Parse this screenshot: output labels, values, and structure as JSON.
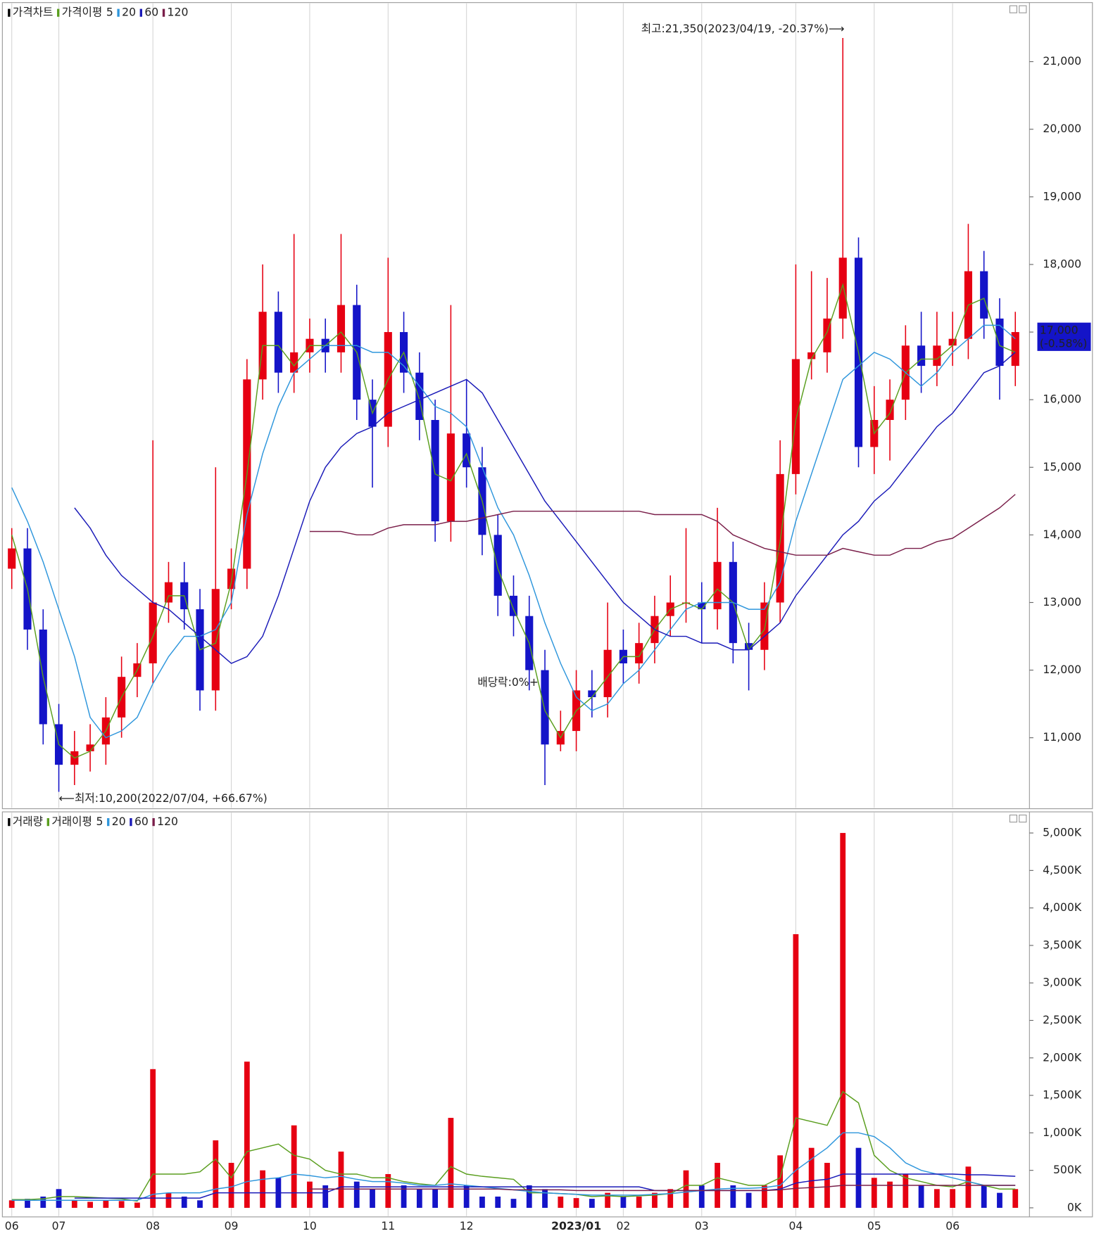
{
  "chart_data": [
    {
      "type": "candlestick",
      "name": "가격차트",
      "ma_label": "가격이평",
      "categories": [
        "06",
        null,
        null,
        "07",
        null,
        null,
        null,
        null,
        null,
        "08",
        null,
        null,
        null,
        null,
        "09",
        null,
        null,
        null,
        null,
        "10",
        null,
        null,
        null,
        null,
        "11",
        null,
        null,
        null,
        null,
        "12",
        null,
        null,
        null,
        null,
        null,
        null,
        "2023/01",
        null,
        null,
        "02",
        null,
        null,
        null,
        null,
        "03",
        null,
        null,
        null,
        null,
        null,
        "04",
        null,
        null,
        null,
        null,
        "05",
        null,
        null,
        null,
        null,
        "06",
        null,
        null,
        null,
        null
      ],
      "open": [
        13500,
        13800,
        12600,
        11200,
        10600,
        10800,
        10900,
        11300,
        11900,
        12100,
        13000,
        13300,
        12900,
        11700,
        13200,
        13500,
        16300,
        17300,
        16400,
        16700,
        16900,
        16700,
        17400,
        16000,
        15600,
        17000,
        16400,
        15700,
        14200,
        15500,
        15000,
        14000,
        13100,
        12800,
        12000,
        10900,
        11100,
        11700,
        11600,
        12300,
        12100,
        12400,
        12800,
        13000,
        13000,
        12900,
        13600,
        12400,
        12300,
        13000,
        14900,
        16600,
        16700,
        17200,
        18100,
        15300,
        15700,
        16000,
        16800,
        16500,
        16800,
        16900,
        17900,
        17200,
        16500
      ],
      "high": [
        14100,
        14100,
        12900,
        11500,
        11100,
        11200,
        11600,
        12200,
        12400,
        15400,
        13600,
        13600,
        13200,
        15000,
        13800,
        16600,
        18000,
        17600,
        18450,
        17200,
        17200,
        18450,
        17700,
        16300,
        18100,
        17300,
        16700,
        16000,
        17400,
        16300,
        15300,
        14300,
        13400,
        13100,
        12300,
        11400,
        12000,
        12000,
        13000,
        12600,
        12700,
        13100,
        13400,
        14100,
        13300,
        14400,
        13900,
        12700,
        13300,
        15400,
        18000,
        17900,
        17800,
        21350,
        18400,
        16200,
        16300,
        17100,
        17300,
        17300,
        17300,
        18600,
        18200,
        17500,
        17300
      ],
      "low": [
        13200,
        12300,
        10900,
        10200,
        10300,
        10500,
        10600,
        11000,
        11600,
        11800,
        12700,
        12600,
        11400,
        11400,
        12900,
        13200,
        16000,
        16100,
        16100,
        16400,
        16400,
        16400,
        15700,
        14700,
        15300,
        16100,
        15400,
        13900,
        13900,
        14700,
        13700,
        12800,
        12500,
        11700,
        10300,
        10800,
        10800,
        11300,
        11300,
        11800,
        11800,
        12100,
        12500,
        12700,
        12400,
        12600,
        12100,
        11700,
        12000,
        12700,
        14600,
        16300,
        16400,
        16900,
        15000,
        14900,
        15100,
        15700,
        16100,
        16200,
        16500,
        16600,
        16900,
        16000,
        16200
      ],
      "close": [
        13800,
        12600,
        11200,
        10600,
        10800,
        10900,
        11300,
        11900,
        12100,
        13000,
        13300,
        12900,
        11700,
        13200,
        13500,
        16300,
        17300,
        16400,
        16700,
        16900,
        16700,
        17400,
        16000,
        15600,
        17000,
        16400,
        15700,
        14200,
        15500,
        15000,
        14000,
        13100,
        12800,
        12000,
        10900,
        11100,
        11700,
        11600,
        12300,
        12100,
        12400,
        12800,
        13000,
        13000,
        12900,
        13600,
        12400,
        12300,
        13000,
        14900,
        16600,
        16700,
        17200,
        18100,
        15300,
        15700,
        16000,
        16800,
        16500,
        16800,
        16900,
        17900,
        17200,
        16500,
        17000
      ],
      "up_color": "#e60012",
      "down_color": "#1414c8",
      "series": [
        {
          "name": "5",
          "color": "#5a9e1e",
          "values": [
            14000,
            13200,
            11900,
            10900,
            10700,
            10800,
            11100,
            11600,
            12000,
            12500,
            13100,
            13100,
            12300,
            12400,
            13300,
            14900,
            16800,
            16800,
            16500,
            16800,
            16800,
            17000,
            16700,
            15800,
            16300,
            16700,
            16000,
            14900,
            14800,
            15200,
            14500,
            13500,
            12900,
            12400,
            11400,
            11000,
            11400,
            11600,
            11900,
            12200,
            12200,
            12600,
            12900,
            13000,
            12900,
            13200,
            13000,
            12300,
            12600,
            13900,
            15700,
            16600,
            17000,
            17700,
            16700,
            15500,
            15800,
            16400,
            16600,
            16600,
            16800,
            17400,
            17500,
            16800,
            16700
          ]
        },
        {
          "name": "20",
          "color": "#2e96dc",
          "values": [
            14700,
            14200,
            13600,
            12900,
            12200,
            11300,
            11000,
            11100,
            11300,
            11800,
            12200,
            12500,
            12500,
            12600,
            13000,
            14300,
            15200,
            15900,
            16400,
            16600,
            16800,
            16800,
            16800,
            16700,
            16700,
            16500,
            16200,
            15900,
            15800,
            15600,
            15000,
            14400,
            14000,
            13400,
            12700,
            12100,
            11600,
            11400,
            11500,
            11800,
            12000,
            12300,
            12600,
            12900,
            13000,
            13000,
            13000,
            12900,
            12900,
            13300,
            14200,
            14900,
            15600,
            16300,
            16500,
            16700,
            16600,
            16400,
            16200,
            16400,
            16700,
            16900,
            17100,
            17100,
            16900
          ]
        },
        {
          "name": "60",
          "color": "#1a1ab8",
          "values": [
            null,
            null,
            null,
            null,
            14400,
            14100,
            13700,
            13400,
            13200,
            13000,
            12900,
            12700,
            12500,
            12300,
            12100,
            12200,
            12500,
            13100,
            13800,
            14500,
            15000,
            15300,
            15500,
            15600,
            15800,
            15900,
            16000,
            16100,
            16200,
            16300,
            16100,
            15700,
            15300,
            14900,
            14500,
            14200,
            13900,
            13600,
            13300,
            13000,
            12800,
            12600,
            12500,
            12500,
            12400,
            12400,
            12300,
            12300,
            12500,
            12700,
            13100,
            13400,
            13700,
            14000,
            14200,
            14500,
            14700,
            15000,
            15300,
            15600,
            15800,
            16100,
            16400,
            16500,
            16700
          ]
        },
        {
          "name": "120",
          "color": "#7a1f4a",
          "values": [
            null,
            null,
            null,
            null,
            null,
            null,
            null,
            null,
            null,
            null,
            null,
            null,
            null,
            null,
            null,
            null,
            null,
            null,
            null,
            14050,
            14050,
            14050,
            14000,
            14000,
            14100,
            14150,
            14150,
            14150,
            14200,
            14200,
            14250,
            14300,
            14350,
            14350,
            14350,
            14350,
            14350,
            14350,
            14350,
            14350,
            14350,
            14300,
            14300,
            14300,
            14300,
            14200,
            14000,
            13900,
            13800,
            13750,
            13700,
            13700,
            13700,
            13800,
            13750,
            13700,
            13700,
            13800,
            13800,
            13900,
            13950,
            14100,
            14250,
            14400,
            14600
          ]
        }
      ],
      "ylim": [
        9950,
        21850
      ],
      "yticks": [
        {
          "value": 11000,
          "label": "11,000"
        },
        {
          "value": 12000,
          "label": "12,000"
        },
        {
          "value": 13000,
          "label": "13,000"
        },
        {
          "value": 14000,
          "label": "14,000"
        },
        {
          "value": 15000,
          "label": "15,000"
        },
        {
          "value": 16000,
          "label": "16,000"
        },
        {
          "value": 17000,
          "label": "17,000"
        },
        {
          "value": 18000,
          "label": "18,000"
        },
        {
          "value": 19000,
          "label": "19,000"
        },
        {
          "value": 20000,
          "label": "20,000"
        },
        {
          "value": 21000,
          "label": "21,000"
        }
      ],
      "last_price": {
        "value": 17000,
        "label": "17,000",
        "change": "(-0.58%)"
      },
      "annotations": {
        "max": "최고:21,350(2023/04/19, -20.37%)⟶",
        "min": "⟵최저:10,200(2022/07/04, +66.67%)",
        "dividend": "배당락:0%"
      }
    },
    {
      "type": "bar",
      "name": "거래량",
      "ma_label": "거래이평",
      "values": [
        100,
        120,
        150,
        250,
        100,
        80,
        100,
        90,
        70,
        1850,
        200,
        150,
        100,
        900,
        600,
        1950,
        500,
        400,
        1100,
        350,
        300,
        750,
        350,
        250,
        450,
        300,
        250,
        250,
        1200,
        300,
        150,
        150,
        120,
        300,
        250,
        150,
        130,
        120,
        200,
        150,
        150,
        200,
        250,
        500,
        300,
        600,
        300,
        200,
        300,
        700,
        3650,
        800,
        600,
        5000,
        800,
        400,
        350,
        450,
        300,
        250,
        250,
        550,
        300,
        200,
        250
      ],
      "series": [
        {
          "name": "5",
          "color": "#5a9e1e",
          "values": [
            110,
            110,
            120,
            150,
            150,
            140,
            130,
            120,
            90,
            450,
            450,
            450,
            480,
            650,
            400,
            750,
            800,
            850,
            700,
            650,
            500,
            450,
            450,
            400,
            400,
            350,
            320,
            300,
            550,
            450,
            420,
            400,
            380,
            200,
            200,
            190,
            180,
            150,
            160,
            150,
            160,
            170,
            190,
            300,
            300,
            400,
            350,
            300,
            300,
            400,
            1200,
            1150,
            1100,
            1550,
            1400,
            700,
            500,
            400,
            350,
            300,
            280,
            350,
            300,
            250,
            250
          ]
        },
        {
          "name": "20",
          "color": "#2e96dc",
          "values": [
            100,
            100,
            100,
            100,
            100,
            100,
            100,
            100,
            100,
            180,
            200,
            200,
            200,
            250,
            280,
            350,
            380,
            400,
            450,
            430,
            400,
            420,
            380,
            350,
            350,
            330,
            300,
            300,
            320,
            300,
            280,
            260,
            240,
            220,
            200,
            190,
            180,
            170,
            170,
            170,
            170,
            180,
            190,
            210,
            230,
            250,
            260,
            260,
            270,
            300,
            500,
            650,
            800,
            1000,
            1000,
            950,
            800,
            600,
            500,
            450,
            400,
            350,
            300,
            300,
            300
          ]
        },
        {
          "name": "60",
          "color": "#1a1ab8",
          "values": [
            null,
            null,
            null,
            null,
            130,
            130,
            130,
            130,
            130,
            130,
            130,
            130,
            130,
            200,
            200,
            200,
            200,
            200,
            200,
            200,
            200,
            280,
            280,
            280,
            280,
            280,
            280,
            280,
            280,
            280,
            280,
            280,
            280,
            280,
            280,
            280,
            280,
            280,
            280,
            280,
            280,
            230,
            230,
            230,
            230,
            230,
            230,
            230,
            230,
            250,
            330,
            360,
            380,
            450,
            450,
            450,
            450,
            450,
            450,
            450,
            450,
            440,
            440,
            430,
            420
          ]
        },
        {
          "name": "120",
          "color": "#7a1f4a",
          "values": [
            null,
            null,
            null,
            null,
            null,
            null,
            null,
            null,
            null,
            null,
            null,
            null,
            null,
            null,
            null,
            null,
            null,
            null,
            null,
            250,
            250,
            250,
            250,
            250,
            250,
            250,
            250,
            250,
            250,
            250,
            250,
            250,
            240,
            240,
            240,
            240,
            230,
            230,
            230,
            230,
            230,
            230,
            230,
            230,
            230,
            230,
            230,
            230,
            230,
            240,
            260,
            270,
            280,
            300,
            300,
            300,
            300,
            300,
            300,
            300,
            300,
            300,
            300,
            300,
            300
          ]
        }
      ],
      "ylim": [
        -100,
        5250
      ],
      "yticks": [
        {
          "value": 0,
          "label": "0K"
        },
        {
          "value": 500,
          "label": "500K"
        },
        {
          "value": 1000,
          "label": "1,000K"
        },
        {
          "value": 1500,
          "label": "1,500K"
        },
        {
          "value": 2000,
          "label": "2,000K"
        },
        {
          "value": 2500,
          "label": "2,500K"
        },
        {
          "value": 3000,
          "label": "3,000K"
        },
        {
          "value": 3500,
          "label": "3,500K"
        },
        {
          "value": 4000,
          "label": "4,000K"
        },
        {
          "value": 4500,
          "label": "4,500K"
        },
        {
          "value": 5000,
          "label": "5,000K"
        }
      ]
    }
  ]
}
